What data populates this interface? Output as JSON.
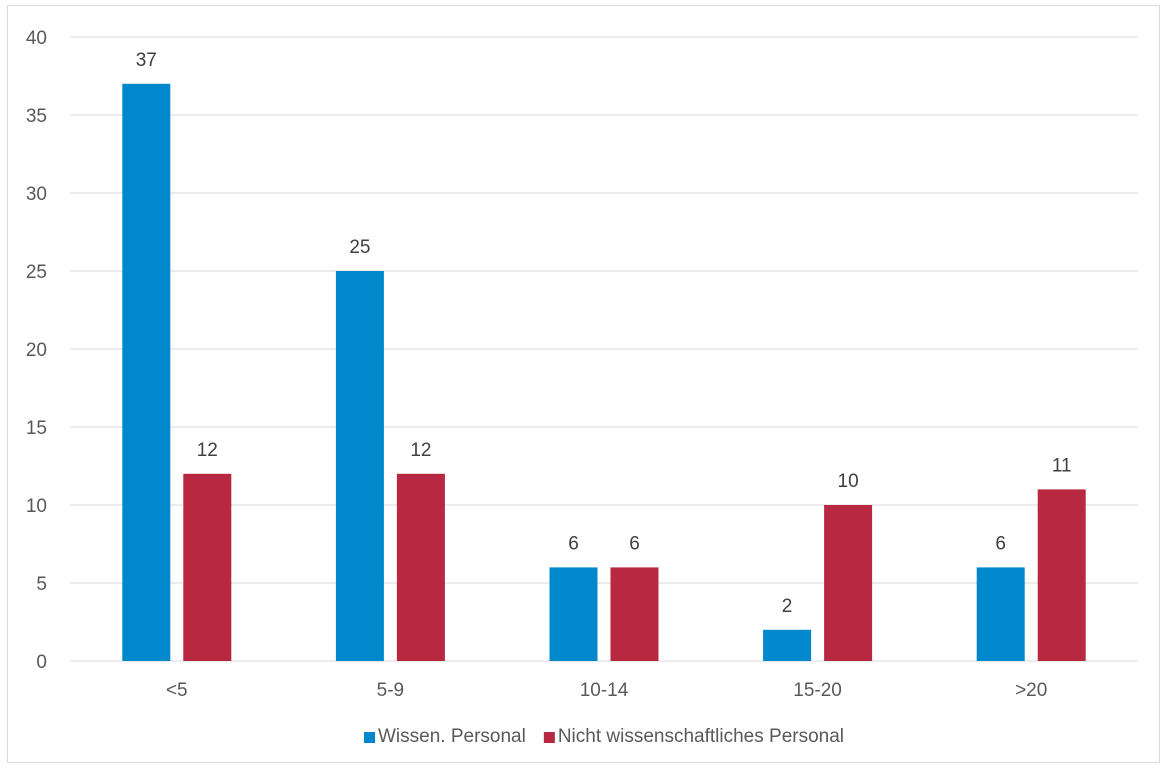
{
  "chart_data": {
    "type": "bar",
    "title": "",
    "xlabel": "",
    "ylabel": "",
    "categories": [
      "<5",
      "5-9",
      "10-14",
      "15-20",
      ">20"
    ],
    "series": [
      {
        "name": "Wissen. Personal",
        "color": "#0088cc",
        "values": [
          37,
          25,
          6,
          2,
          6
        ]
      },
      {
        "name": "Nicht wissenschaftliches Personal",
        "color": "#b82840",
        "values": [
          12,
          12,
          6,
          10,
          11
        ]
      }
    ],
    "ylim": [
      0,
      40
    ],
    "yticks": [
      0,
      5,
      10,
      15,
      20,
      25,
      30,
      35,
      40
    ],
    "grid": true,
    "gridline_color": "#d9d9d9",
    "legend_position": "bottom",
    "data_labels": true
  }
}
